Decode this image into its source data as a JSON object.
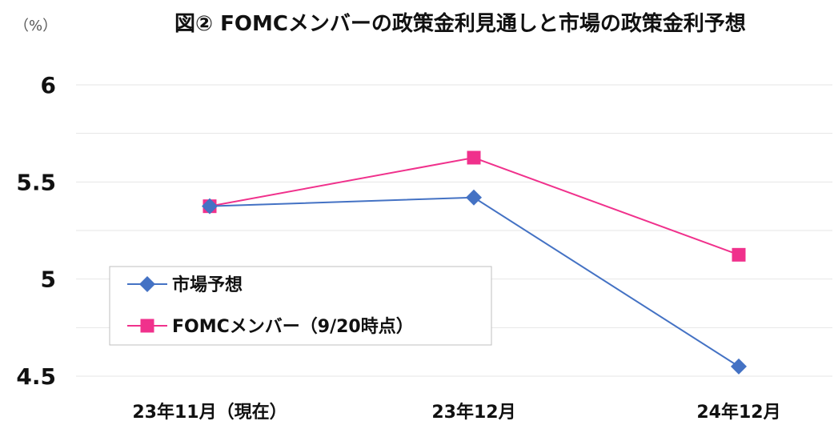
{
  "chart_data": {
    "type": "line",
    "title": "図② FOMCメンバーの政策金利見通しと市場の政策金利予想",
    "unit_label": "（%）",
    "categories": [
      "23年11月（現在）",
      "23年12月",
      "24年12月"
    ],
    "ylim": [
      4.5,
      6
    ],
    "yticks": [
      4.5,
      5,
      5.5,
      6
    ],
    "grid": true,
    "legend_position": "bottom-left",
    "series": [
      {
        "name": "市場予想",
        "values": [
          5.375,
          5.42,
          4.55
        ],
        "color": "#4472C4",
        "marker": "diamond"
      },
      {
        "name": "FOMCメンバー（9/20時点）",
        "values": [
          5.375,
          5.625,
          5.125
        ],
        "color": "#F0318C",
        "marker": "square"
      }
    ]
  }
}
